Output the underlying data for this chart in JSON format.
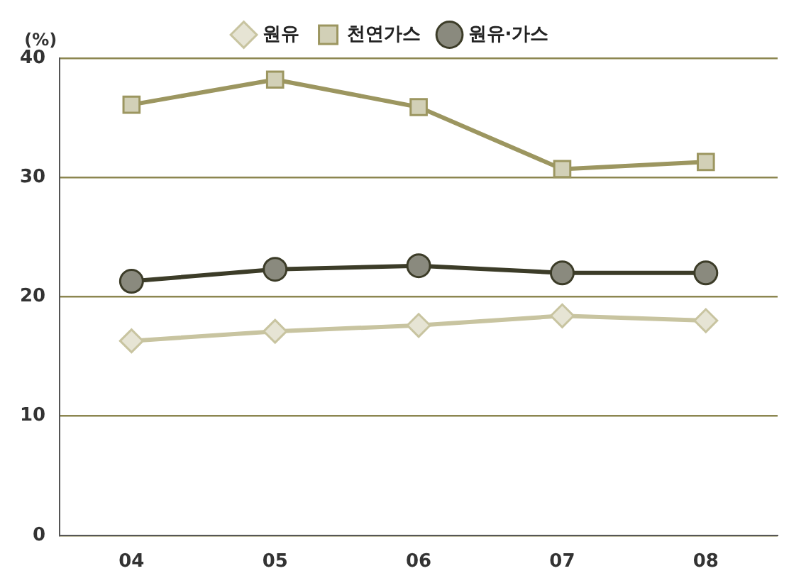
{
  "chart_data": {
    "type": "line",
    "ylabel": "(%)",
    "categories": [
      "04",
      "05",
      "06",
      "07",
      "08"
    ],
    "series": [
      {
        "name": "원유",
        "color": "#c8c4a0",
        "marker": "diamond",
        "values": [
          16.3,
          17.1,
          17.6,
          18.4,
          18.0
        ]
      },
      {
        "name": "천연가스",
        "color": "#9c9660",
        "marker": "square",
        "values": [
          36.1,
          38.2,
          35.9,
          30.7,
          31.3
        ]
      },
      {
        "name": "원유·가스",
        "color": "#3c3c28",
        "marker": "circle",
        "values": [
          21.3,
          22.3,
          22.6,
          22.0,
          22.0
        ]
      }
    ],
    "ylim": [
      0,
      40
    ],
    "yticks": [
      0,
      10,
      20,
      30,
      40
    ],
    "grid": "y",
    "legend": "top",
    "line_style": "solid"
  }
}
